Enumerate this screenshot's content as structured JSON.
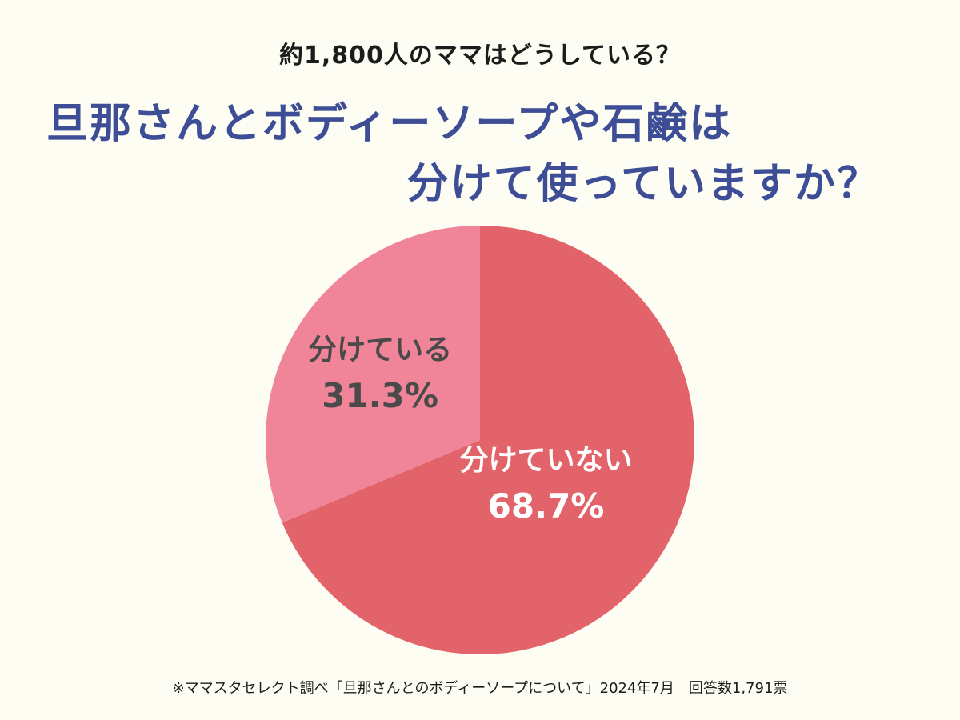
{
  "header": {
    "subtitle": "約1,800人のママはどうしている？",
    "title_line1": "旦那さんとボディーソープや石鹸は",
    "title_line2": "分けて使っていますか？"
  },
  "chart_data": {
    "type": "pie",
    "slices": [
      {
        "label": "分けていない",
        "value": 68.7,
        "value_label": "68.7%",
        "color": "#e2636a",
        "text_color": "#ffffff"
      },
      {
        "label": "分けている",
        "value": 31.3,
        "value_label": "31.3%",
        "color": "#f08498",
        "text_color": "#4a4a4a"
      }
    ]
  },
  "footnote": "※ママスタセレクト調べ「旦那さんとのボディーソープについて」2024年7月　回答数1,791票"
}
